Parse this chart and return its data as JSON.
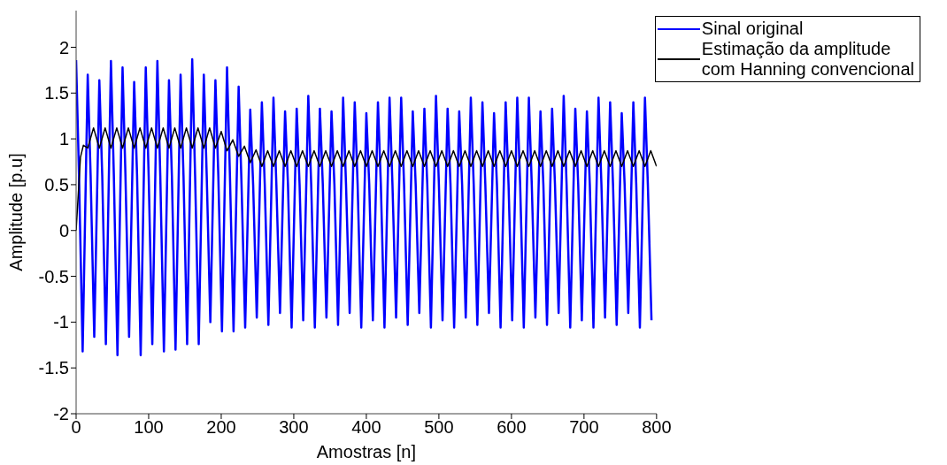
{
  "chart_data": {
    "type": "line",
    "xlabel": "Amostras [n]",
    "ylabel": "Amplitude [p.u]",
    "xlim": [
      0,
      800
    ],
    "xticks": [
      0,
      100,
      200,
      300,
      400,
      500,
      600,
      700,
      800
    ],
    "ylim": [
      -2,
      2.4
    ],
    "yticks": [
      -2,
      -1.5,
      -1,
      -0.5,
      0,
      0.5,
      1,
      1.5,
      2
    ],
    "legend": "top right",
    "marker": "none",
    "line_style": "solid",
    "series": [
      {
        "name": "Sinal original",
        "color": "#0000ff",
        "x": [
          0,
          4,
          9,
          16,
          20,
          25,
          32,
          36,
          41,
          48,
          52,
          57,
          64,
          68,
          73,
          80,
          84,
          89,
          96,
          100,
          105,
          112,
          116,
          121,
          128,
          132,
          137,
          144,
          148,
          153,
          160,
          164,
          169,
          176,
          180,
          185,
          192,
          196,
          201,
          208,
          212,
          217,
          224,
          228,
          233,
          240,
          244,
          249,
          256,
          260,
          265,
          272,
          276,
          281,
          288,
          292,
          297,
          304,
          308,
          313,
          320,
          324,
          329,
          336,
          340,
          345,
          352,
          356,
          361,
          368,
          372,
          377,
          384,
          388,
          393,
          400,
          404,
          409,
          416,
          420,
          425,
          432,
          436,
          441,
          448,
          452,
          457,
          464,
          468,
          473,
          480,
          484,
          489,
          496,
          500,
          505,
          512,
          516,
          521,
          528,
          532,
          537,
          544,
          548,
          553,
          560,
          564,
          569,
          576,
          580,
          585,
          592,
          596,
          601,
          608,
          612,
          617,
          624,
          628,
          633,
          640,
          644,
          649,
          656,
          660,
          665,
          672,
          676,
          681,
          688,
          692,
          697,
          704,
          708,
          713,
          720,
          724,
          729,
          736,
          740,
          745,
          752,
          756,
          761,
          768,
          772,
          777,
          784,
          788,
          793
        ],
        "values": [
          1.86,
          0.6,
          -1.32,
          1.7,
          0.6,
          -1.16,
          1.64,
          0.6,
          -1.24,
          1.85,
          0.6,
          -1.36,
          1.78,
          0.6,
          -1.16,
          1.62,
          0.6,
          -1.36,
          1.78,
          0.6,
          -1.24,
          1.85,
          0.6,
          -1.32,
          1.64,
          0.6,
          -1.3,
          1.7,
          0.6,
          -1.24,
          1.87,
          0.6,
          -1.24,
          1.7,
          0.6,
          -1.0,
          1.64,
          0.6,
          -1.1,
          1.78,
          0.6,
          -1.1,
          1.57,
          0.5,
          -1.06,
          1.32,
          0.5,
          -0.95,
          1.4,
          0.5,
          -1.03,
          1.45,
          0.5,
          -0.9,
          1.3,
          0.5,
          -1.06,
          1.33,
          0.5,
          -0.98,
          1.47,
          0.5,
          -1.06,
          1.33,
          0.5,
          -0.95,
          1.3,
          0.5,
          -1.03,
          1.45,
          0.5,
          -0.9,
          1.4,
          0.5,
          -1.06,
          1.28,
          0.5,
          -0.98,
          1.4,
          0.5,
          -1.06,
          1.45,
          0.5,
          -0.95,
          1.45,
          0.5,
          -1.03,
          1.3,
          0.5,
          -0.9,
          1.33,
          0.5,
          -1.06,
          1.47,
          0.5,
          -0.98,
          1.33,
          0.5,
          -1.06,
          1.3,
          0.5,
          -0.95,
          1.45,
          0.5,
          -1.03,
          1.4,
          0.5,
          -0.9,
          1.28,
          0.5,
          -1.06,
          1.4,
          0.5,
          -0.98,
          1.45,
          0.5,
          -1.06,
          1.45,
          0.5,
          -0.95,
          1.3,
          0.5,
          -1.03,
          1.33,
          0.5,
          -0.9,
          1.47,
          0.5,
          -1.06,
          1.33,
          0.5,
          -0.98,
          1.3,
          0.5,
          -1.06,
          1.45,
          0.5,
          -0.95,
          1.4,
          0.5,
          -1.03,
          1.28,
          0.5,
          -0.9,
          1.4,
          0.5,
          -1.06,
          1.45,
          0.5,
          -0.98
        ]
      },
      {
        "name": "Estimação da amplitude\ncom Hanning convencional",
        "color": "#000000",
        "x": [
          0,
          3,
          6,
          10,
          16,
          24,
          32,
          40,
          48,
          56,
          64,
          72,
          80,
          88,
          96,
          104,
          112,
          120,
          128,
          136,
          144,
          152,
          160,
          168,
          176,
          184,
          192,
          200,
          208,
          216,
          224,
          232,
          240,
          248,
          256,
          264,
          272,
          280,
          288,
          296,
          304,
          312,
          320,
          328,
          336,
          344,
          352,
          360,
          368,
          376,
          384,
          392,
          400,
          408,
          416,
          424,
          432,
          440,
          448,
          456,
          464,
          472,
          480,
          488,
          496,
          504,
          512,
          520,
          528,
          536,
          544,
          552,
          560,
          568,
          576,
          584,
          592,
          600,
          608,
          616,
          624,
          632,
          640,
          648,
          656,
          664,
          672,
          680,
          688,
          696,
          704,
          712,
          720,
          728,
          736,
          744,
          752,
          760,
          768,
          776,
          784,
          792,
          800
        ],
        "values": [
          0,
          0.4,
          0.8,
          0.93,
          0.9,
          1.12,
          0.9,
          1.12,
          0.9,
          1.12,
          0.9,
          1.12,
          0.9,
          1.12,
          0.9,
          1.12,
          0.9,
          1.12,
          0.9,
          1.12,
          0.9,
          1.12,
          0.9,
          1.12,
          0.9,
          1.12,
          0.9,
          1.08,
          0.87,
          0.99,
          0.81,
          0.92,
          0.74,
          0.88,
          0.7,
          0.87,
          0.7,
          0.87,
          0.7,
          0.87,
          0.7,
          0.87,
          0.7,
          0.87,
          0.7,
          0.87,
          0.7,
          0.87,
          0.7,
          0.87,
          0.7,
          0.87,
          0.7,
          0.87,
          0.7,
          0.87,
          0.7,
          0.87,
          0.7,
          0.87,
          0.7,
          0.87,
          0.7,
          0.87,
          0.7,
          0.87,
          0.7,
          0.87,
          0.7,
          0.87,
          0.7,
          0.87,
          0.7,
          0.87,
          0.7,
          0.87,
          0.7,
          0.87,
          0.7,
          0.87,
          0.7,
          0.87,
          0.7,
          0.87,
          0.7,
          0.87,
          0.7,
          0.87,
          0.7,
          0.87,
          0.7,
          0.87,
          0.7,
          0.87,
          0.7,
          0.87,
          0.7,
          0.87,
          0.7,
          0.87,
          0.7,
          0.87,
          0.7
        ]
      }
    ]
  }
}
